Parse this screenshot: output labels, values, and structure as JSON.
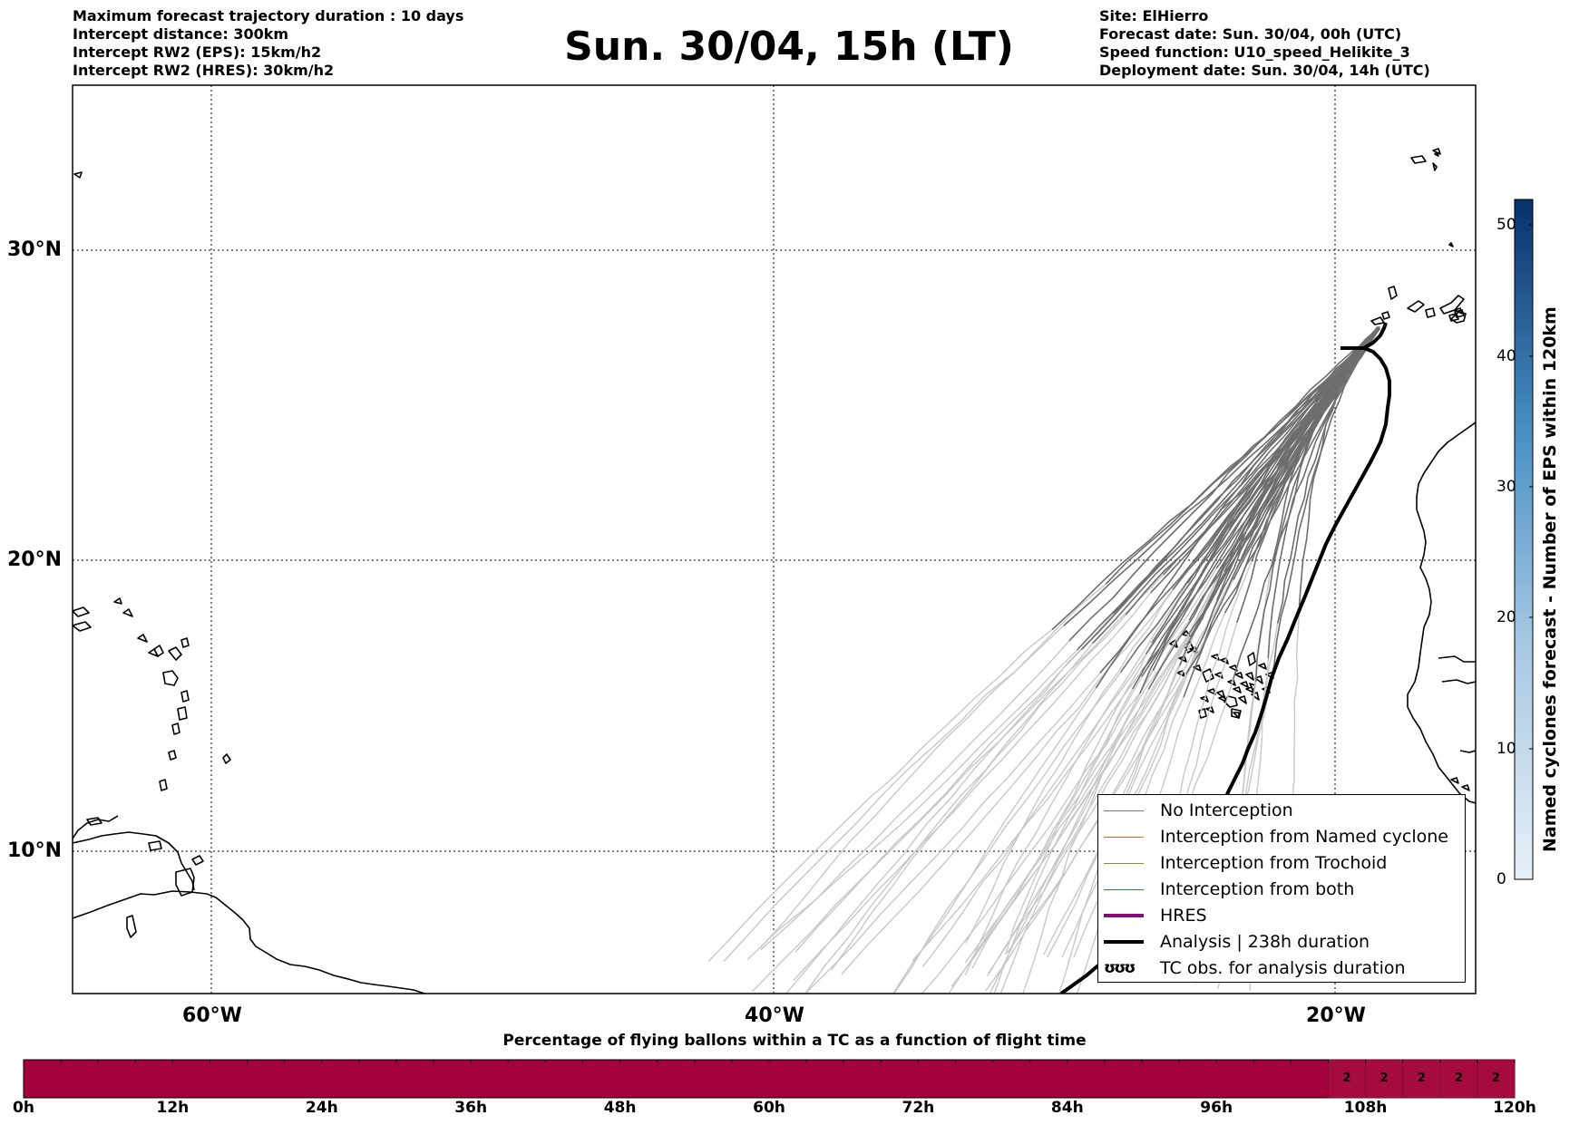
{
  "info_left": [
    "Maximum forecast trajectory duration : 10 days",
    "Intercept distance: 300km",
    "Intercept RW2 (EPS):  15km/h2",
    "Intercept RW2 (HRES): 30km/h2"
  ],
  "info_right": [
    "Site: ElHierro",
    "Forecast date: Sun. 30/04, 00h (UTC)",
    "Speed function: U10_speed_Helikite_3",
    "Deployment date: Sun. 30/04, 14h (UTC)"
  ],
  "title": "Sun. 30/04, 15h (LT)",
  "map": {
    "lat_labels": [
      "30°N",
      "20°N",
      "10°N"
    ],
    "lon_labels": [
      "60°W",
      "40°W",
      "20°W"
    ],
    "lon_range": [
      -65,
      -15
    ],
    "lat_range": [
      5.4,
      34.7
    ],
    "gridlines": true
  },
  "legend": {
    "items": [
      {
        "label": "No Interception",
        "color": "#777777"
      },
      {
        "label": "Interception from Named cyclone",
        "color": "#e8642a"
      },
      {
        "label": "Interception from Trochoid",
        "color": "#8a8a2a"
      },
      {
        "label": "Interception from both",
        "color": "#2f8a2f"
      },
      {
        "label": "HRES",
        "color": "#8b0a7a"
      },
      {
        "label": "Analysis | 238h duration",
        "color": "#000000"
      },
      {
        "label": "TC obs. for analysis duration",
        "color": "#000000",
        "symbol": "ʊʊʊ"
      }
    ]
  },
  "colorbar": {
    "title": "Named cyclones forecast - Number of EPS within 120km",
    "ticks": [
      "0",
      "10",
      "20",
      "30",
      "40",
      "50"
    ],
    "range": [
      0,
      52
    ],
    "color_low": "#e8f0fa",
    "color_high": "#08306b"
  },
  "bottom_bar": {
    "title": "Percentage of flying ballons within a TC as a function of flight time",
    "time_labels": [
      "0h",
      "12h",
      "24h",
      "36h",
      "48h",
      "60h",
      "72h",
      "84h",
      "96h",
      "108h",
      "120h"
    ],
    "segment_values": [
      "2",
      "2",
      "2",
      "2",
      "2"
    ],
    "segment_start_hours": [
      105,
      108,
      111,
      114,
      117
    ],
    "fill_color": "#a3003c",
    "cell_color": "#a50b3f"
  }
}
